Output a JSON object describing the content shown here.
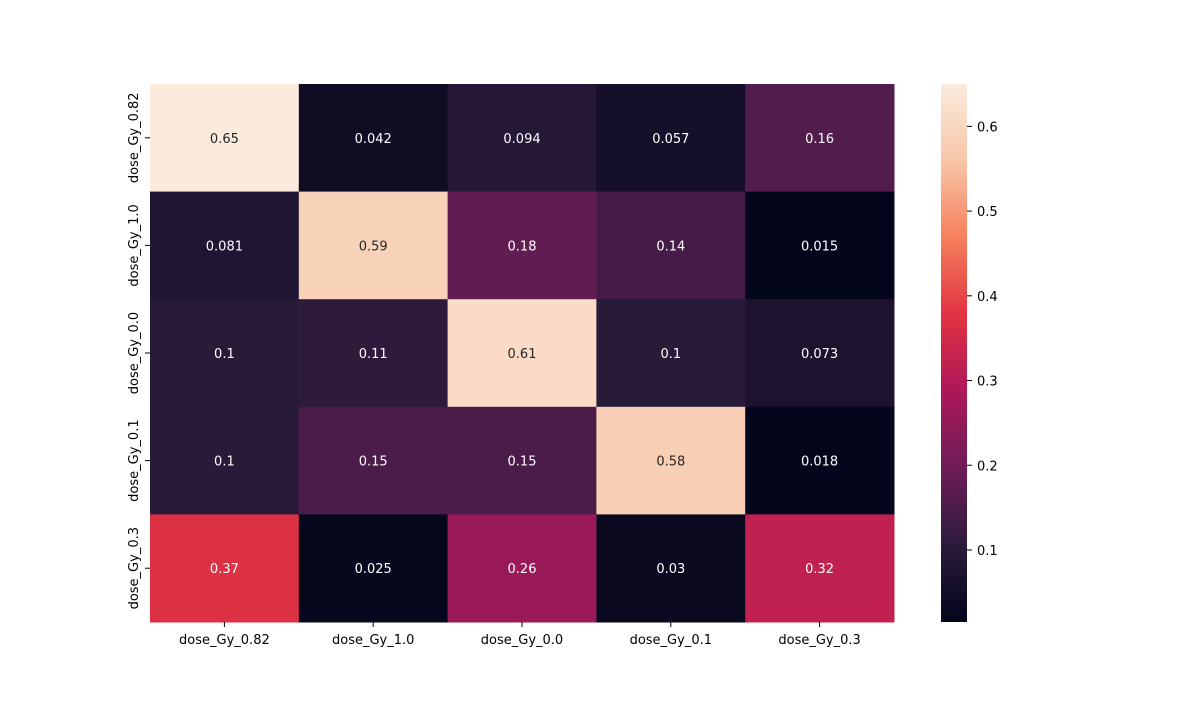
{
  "chart_data": {
    "type": "heatmap",
    "title": "",
    "xlabel": "",
    "ylabel": "",
    "x_categories": [
      "dose_Gy_0.82",
      "dose_Gy_1.0",
      "dose_Gy_0.0",
      "dose_Gy_0.1",
      "dose_Gy_0.3"
    ],
    "y_categories": [
      "dose_Gy_0.82",
      "dose_Gy_1.0",
      "dose_Gy_0.0",
      "dose_Gy_0.1",
      "dose_Gy_0.3"
    ],
    "values": [
      [
        0.65,
        0.042,
        0.094,
        0.057,
        0.16
      ],
      [
        0.081,
        0.59,
        0.18,
        0.14,
        0.015
      ],
      [
        0.1,
        0.11,
        0.61,
        0.1,
        0.073
      ],
      [
        0.1,
        0.15,
        0.15,
        0.58,
        0.018
      ],
      [
        0.37,
        0.025,
        0.26,
        0.03,
        0.32
      ]
    ],
    "annotations": [
      [
        "0.65",
        "0.042",
        "0.094",
        "0.057",
        "0.16"
      ],
      [
        "0.081",
        "0.59",
        "0.18",
        "0.14",
        "0.015"
      ],
      [
        "0.1",
        "0.11",
        "0.61",
        "0.1",
        "0.073"
      ],
      [
        "0.1",
        "0.15",
        "0.15",
        "0.58",
        "0.018"
      ],
      [
        "0.37",
        "0.025",
        "0.26",
        "0.03",
        "0.32"
      ]
    ],
    "colorbar": {
      "range": [
        0.015,
        0.65
      ],
      "ticks": [
        0.1,
        0.2,
        0.3,
        0.4,
        0.5,
        0.6
      ],
      "tick_labels": [
        "0.1",
        "0.2",
        "0.3",
        "0.4",
        "0.5",
        "0.6"
      ]
    },
    "colormap": "rocket",
    "colormap_stops": [
      "#03051a",
      "#2b1b3b",
      "#6d1d57",
      "#ad1759",
      "#e13342",
      "#f6805c",
      "#f7c6a8",
      "#faebdd"
    ]
  }
}
